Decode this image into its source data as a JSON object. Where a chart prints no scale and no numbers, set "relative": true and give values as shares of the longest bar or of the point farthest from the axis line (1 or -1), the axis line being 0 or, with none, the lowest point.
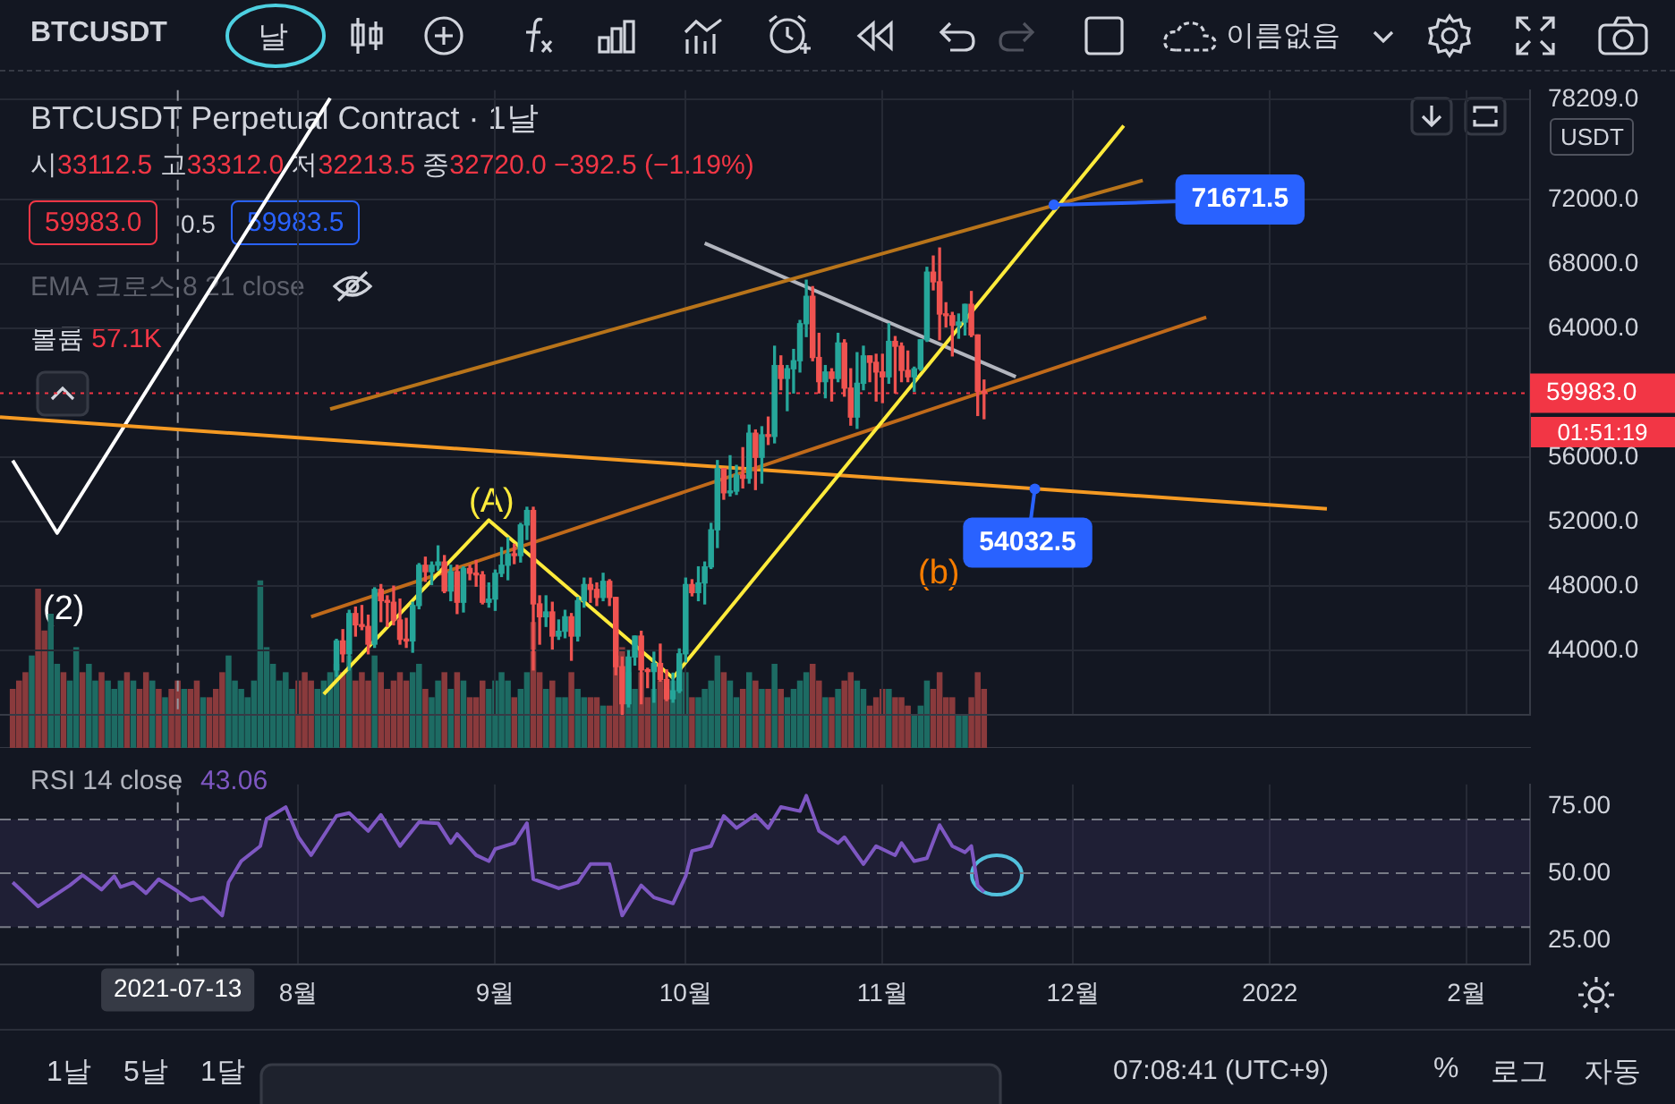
{
  "chart_data": [
    {
      "type": "candlestick",
      "title": "BTCUSDT Perpetual Contract · 1날",
      "subtitle": "시33112.5 고33312.0 저32213.5 종32720.0 −392.5 (−1.19%)",
      "x": [
        "2021-08-07",
        "2021-08-08",
        "2021-08-09",
        "2021-08-10",
        "2021-08-11",
        "2021-08-12",
        "2021-08-13",
        "2021-08-14",
        "2021-08-15",
        "2021-08-16",
        "2021-08-17",
        "2021-08-18",
        "2021-08-19",
        "2021-08-20",
        "2021-08-21",
        "2021-08-22",
        "2021-08-23",
        "2021-08-24",
        "2021-08-25",
        "2021-08-26",
        "2021-08-27",
        "2021-08-28",
        "2021-08-29",
        "2021-08-30",
        "2021-08-31",
        "2021-09-01",
        "2021-09-02",
        "2021-09-03",
        "2021-09-04",
        "2021-09-05",
        "2021-09-06",
        "2021-09-07",
        "2021-09-08",
        "2021-09-09",
        "2021-09-10",
        "2021-09-11",
        "2021-09-12",
        "2021-09-13",
        "2021-09-14",
        "2021-09-15",
        "2021-09-16",
        "2021-09-17",
        "2021-09-18",
        "2021-09-19",
        "2021-09-20",
        "2021-09-21",
        "2021-09-22",
        "2021-09-23",
        "2021-09-24",
        "2021-09-25",
        "2021-09-26",
        "2021-09-27",
        "2021-09-28",
        "2021-09-29",
        "2021-09-30",
        "2021-10-01",
        "2021-10-02",
        "2021-10-03",
        "2021-10-04",
        "2021-10-05",
        "2021-10-06",
        "2021-10-07",
        "2021-10-08",
        "2021-10-09",
        "2021-10-10",
        "2021-10-11",
        "2021-10-12",
        "2021-10-13",
        "2021-10-14",
        "2021-10-15",
        "2021-10-16",
        "2021-10-17",
        "2021-10-18",
        "2021-10-19",
        "2021-10-20",
        "2021-10-21",
        "2021-10-22",
        "2021-10-23",
        "2021-10-24",
        "2021-10-25",
        "2021-10-26",
        "2021-10-27",
        "2021-10-28",
        "2021-10-29",
        "2021-10-30",
        "2021-10-31",
        "2021-11-01",
        "2021-11-02",
        "2021-11-03",
        "2021-11-04",
        "2021-11-05",
        "2021-11-06",
        "2021-11-07",
        "2021-11-08",
        "2021-11-09",
        "2021-11-10",
        "2021-11-11",
        "2021-11-12",
        "2021-11-13",
        "2021-11-14",
        "2021-11-15",
        "2021-11-16",
        "2021-11-17"
      ],
      "ohlc": [
        [
          42800,
          44700,
          42400,
          44600
        ],
        [
          44600,
          45300,
          43300,
          43800
        ],
        [
          43800,
          46500,
          42800,
          46300
        ],
        [
          46300,
          46700,
          44900,
          45600
        ],
        [
          45600,
          46800,
          45300,
          45500
        ],
        [
          45500,
          46200,
          43800,
          44400
        ],
        [
          44400,
          47900,
          44200,
          47800
        ],
        [
          47800,
          48100,
          45800,
          47100
        ],
        [
          47100,
          47400,
          45500,
          47000
        ],
        [
          47000,
          48000,
          45600,
          45900
        ],
        [
          45900,
          47200,
          44400,
          44700
        ],
        [
          44700,
          46000,
          44200,
          44600
        ],
        [
          44600,
          47000,
          43900,
          46800
        ],
        [
          46800,
          49400,
          46600,
          49300
        ],
        [
          49300,
          49800,
          48300,
          48900
        ],
        [
          48900,
          49500,
          48100,
          49300
        ],
        [
          49300,
          50500,
          49000,
          49500
        ],
        [
          49500,
          49900,
          47600,
          47700
        ],
        [
          47700,
          49300,
          47100,
          48900
        ],
        [
          48900,
          49300,
          46300,
          47000
        ],
        [
          47000,
          49200,
          46400,
          49100
        ],
        [
          49100,
          49300,
          48400,
          48800
        ],
        [
          48800,
          49600,
          48000,
          48700
        ],
        [
          48700,
          48900,
          46900,
          47000
        ],
        [
          47000,
          48200,
          46700,
          47200
        ],
        [
          47200,
          49000,
          46500,
          48800
        ],
        [
          48800,
          50400,
          48600,
          49300
        ],
        [
          49300,
          51000,
          48400,
          50000
        ],
        [
          50000,
          50600,
          49400,
          49900
        ],
        [
          49900,
          51900,
          49500,
          51800
        ],
        [
          51800,
          52900,
          50900,
          52700
        ],
        [
          52700,
          52900,
          42800,
          46900
        ],
        [
          46900,
          47400,
          44400,
          46100
        ],
        [
          46100,
          47400,
          45500,
          46400
        ],
        [
          46400,
          47000,
          44100,
          44900
        ],
        [
          44900,
          45900,
          44700,
          45200
        ],
        [
          45200,
          46500,
          44800,
          46100
        ],
        [
          46100,
          46300,
          43400,
          44900
        ],
        [
          44900,
          47300,
          44600,
          47100
        ],
        [
          47100,
          48500,
          46700,
          48100
        ],
        [
          48100,
          48500,
          47000,
          47800
        ],
        [
          47800,
          48200,
          46800,
          47300
        ],
        [
          47300,
          48800,
          47100,
          48300
        ],
        [
          48300,
          48400,
          46800,
          47300
        ],
        [
          47300,
          47300,
          42500,
          43000
        ],
        [
          43000,
          43600,
          40000,
          40700
        ],
        [
          40700,
          44000,
          40500,
          43600
        ],
        [
          43600,
          44900,
          43100,
          44900
        ],
        [
          44900,
          45200,
          40700,
          42800
        ],
        [
          42800,
          42900,
          41700,
          42700
        ],
        [
          42700,
          43900,
          40800,
          43200
        ],
        [
          43200,
          44400,
          42100,
          42200
        ],
        [
          42200,
          42800,
          40900,
          41000
        ],
        [
          41000,
          42600,
          40800,
          41500
        ],
        [
          41500,
          44100,
          41400,
          43800
        ],
        [
          43800,
          48500,
          43300,
          48100
        ],
        [
          48100,
          48400,
          47400,
          47600
        ],
        [
          47600,
          49200,
          47100,
          48200
        ],
        [
          48200,
          49500,
          46900,
          49200
        ],
        [
          49200,
          51900,
          49100,
          51500
        ],
        [
          51500,
          55800,
          50400,
          55300
        ],
        [
          55300,
          55300,
          53400,
          53800
        ],
        [
          53800,
          56100,
          53600,
          53900
        ],
        [
          53900,
          55500,
          53700,
          54900
        ],
        [
          54900,
          56600,
          54100,
          54700
        ],
        [
          54700,
          58000,
          54400,
          57500
        ],
        [
          57500,
          57700,
          54000,
          56000
        ],
        [
          56000,
          57900,
          54400,
          57400
        ],
        [
          57400,
          58500,
          56800,
          57300
        ],
        [
          57300,
          62900,
          56900,
          61700
        ],
        [
          61700,
          62300,
          60200,
          60900
        ],
        [
          60900,
          61700,
          58900,
          61500
        ],
        [
          61500,
          62700,
          60000,
          62000
        ],
        [
          62000,
          64500,
          61300,
          64300
        ],
        [
          64300,
          67000,
          63500,
          66000
        ],
        [
          66000,
          66600,
          62000,
          62200
        ],
        [
          62200,
          63700,
          60000,
          60700
        ],
        [
          60700,
          61700,
          59700,
          61300
        ],
        [
          61300,
          61500,
          59500,
          60900
        ],
        [
          60900,
          63700,
          60700,
          63100
        ],
        [
          63100,
          63300,
          59800,
          60300
        ],
        [
          60300,
          61500,
          58000,
          58500
        ],
        [
          58500,
          62500,
          57800,
          60600
        ],
        [
          60600,
          62900,
          60200,
          62300
        ],
        [
          62300,
          62300,
          60700,
          61900
        ],
        [
          61900,
          62400,
          59500,
          61300
        ],
        [
          61300,
          62400,
          59400,
          61000
        ],
        [
          61000,
          64300,
          60600,
          63200
        ],
        [
          63200,
          63500,
          60000,
          62900
        ],
        [
          62900,
          63100,
          60700,
          61400
        ],
        [
          61400,
          62600,
          60700,
          61000
        ],
        [
          61000,
          61600,
          60100,
          61500
        ],
        [
          61500,
          63300,
          61400,
          63300
        ],
        [
          63300,
          67800,
          63200,
          67500
        ],
        [
          67500,
          68500,
          66400,
          66900
        ],
        [
          66900,
          69000,
          63300,
          64900
        ],
        [
          64900,
          65600,
          64100,
          64800
        ],
        [
          64800,
          65000,
          62300,
          64200
        ],
        [
          64200,
          64900,
          63400,
          64400
        ],
        [
          64400,
          65500,
          63600,
          65500
        ],
        [
          65500,
          66300,
          63500,
          63600
        ],
        [
          63600,
          63600,
          58600,
          60100
        ],
        [
          60100,
          60800,
          58400,
          59983
        ]
      ],
      "series": [
        {
          "type": "line",
          "x": [
            "2021-08-05",
            "2021-08-31",
            "2021-09-29",
            "2021-12-09"
          ],
          "values": [
            41300,
            52100,
            42300,
            76600
          ],
          "color": "#ffeb3b"
        },
        {
          "type": "line",
          "x": [
            "2021-08-06",
            "2021-12-12"
          ],
          "values": [
            59000,
            73200
          ],
          "color": "#b8741a"
        },
        {
          "type": "line",
          "x": [
            "2021-08-03",
            "2021-12-22"
          ],
          "values": [
            46100,
            64700
          ],
          "color": "#c06a1a"
        },
        {
          "type": "line",
          "x": [
            "2021-06-15",
            "2022-01-10"
          ],
          "values": [
            58500,
            52800
          ],
          "color": "#f59a23"
        },
        {
          "type": "line",
          "x": [
            "2021-06-17",
            "2021-06-24",
            "2021-08-06"
          ],
          "values": [
            55800,
            51300,
            78300
          ],
          "color": "#ffffff"
        },
        {
          "type": "line",
          "x": [
            "2021-10-04",
            "2021-11-22"
          ],
          "values": [
            69300,
            61000
          ],
          "color": "#b2b5be"
        }
      ],
      "xlim": [
        "2021-06-15",
        "2022-02-11"
      ],
      "xticks": [
        {
          "value": "2021-08-01",
          "label": null
        },
        {
          "value": "2021-09-01",
          "label": null
        },
        {
          "value": "2021-10-01",
          "label": null
        },
        {
          "value": "2021-11-01",
          "label": null
        },
        {
          "value": "2021-12-01",
          "label": null
        },
        {
          "value": "2022-01-01",
          "label": null
        },
        {
          "value": "2022-02-01",
          "label": null
        }
      ],
      "ylim": [
        40000,
        78800
      ],
      "yticks": [
        {
          "value": 44000,
          "label": "44000.0"
        },
        {
          "value": 48000,
          "label": "48000.0"
        },
        {
          "value": 52000,
          "label": "52000.0"
        },
        {
          "value": 56000,
          "label": "56000.0"
        },
        {
          "value": 64000,
          "label": "64000.0"
        },
        {
          "value": 68000,
          "label": "68000.0"
        },
        {
          "value": 72000,
          "label": "72000.0"
        },
        {
          "value": 78209,
          "label": "78209.0"
        }
      ],
      "tick_labels": "y",
      "grid": true,
      "ref_lines": [
        {
          "axis": "y",
          "value": 59983.0,
          "label": "59983.0",
          "color": "#f23645",
          "line_style": "dotted"
        },
        {
          "axis": "x",
          "value": "2021-07-13",
          "color": "#9598a1",
          "line_style": "dashed"
        }
      ],
      "annotations": [
        {
          "text": "71671.5",
          "x": "2021-11-28",
          "y": 71671.5
        },
        {
          "text": "54032.5",
          "x": "2021-11-25",
          "y": 54032.5
        },
        "(A)",
        "(b)",
        "(2)",
        "59983.0",
        "0.5",
        "59983.5",
        "EMA 크로스 8 21 close",
        "볼륨 57.1K",
        "01:51:19",
        "USDT",
        "BTCUSDT",
        "날",
        "이름없음",
        "1날",
        "5날",
        "1달",
        "07:08:41 (UTC+9)",
        "%",
        "로그",
        "자동"
      ]
    },
    {
      "type": "bar",
      "relative": true,
      "tick_labels": false,
      "x": [
        "2021-06-17",
        "2021-06-18",
        "2021-06-19",
        "2021-06-20",
        "2021-06-21",
        "2021-06-22",
        "2021-06-23",
        "2021-06-24",
        "2021-06-25",
        "2021-06-26",
        "2021-06-27",
        "2021-06-28",
        "2021-06-29",
        "2021-06-30",
        "2021-07-01",
        "2021-07-02",
        "2021-07-03",
        "2021-07-04",
        "2021-07-05",
        "2021-07-06",
        "2021-07-07",
        "2021-07-08",
        "2021-07-09",
        "2021-07-10",
        "2021-07-11",
        "2021-07-12",
        "2021-07-13",
        "2021-07-14",
        "2021-07-15",
        "2021-07-16",
        "2021-07-17",
        "2021-07-18",
        "2021-07-19",
        "2021-07-20",
        "2021-07-21",
        "2021-07-22",
        "2021-07-23",
        "2021-07-24",
        "2021-07-25",
        "2021-07-26",
        "2021-07-27",
        "2021-07-28",
        "2021-07-29",
        "2021-07-30",
        "2021-07-31",
        "2021-08-01",
        "2021-08-02",
        "2021-08-03",
        "2021-08-04",
        "2021-08-05",
        "2021-08-06",
        "2021-08-07",
        "2021-08-08",
        "2021-08-09",
        "2021-08-10",
        "2021-08-11",
        "2021-08-12",
        "2021-08-13",
        "2021-08-14",
        "2021-08-15",
        "2021-08-16",
        "2021-08-17",
        "2021-08-18",
        "2021-08-19",
        "2021-08-20",
        "2021-08-21",
        "2021-08-22",
        "2021-08-23",
        "2021-08-24",
        "2021-08-25",
        "2021-08-26",
        "2021-08-27",
        "2021-08-28",
        "2021-08-29",
        "2021-08-30",
        "2021-08-31",
        "2021-09-01",
        "2021-09-02",
        "2021-09-03",
        "2021-09-04",
        "2021-09-05",
        "2021-09-06",
        "2021-09-07",
        "2021-09-08",
        "2021-09-09",
        "2021-09-10",
        "2021-09-11",
        "2021-09-12",
        "2021-09-13",
        "2021-09-14",
        "2021-09-15",
        "2021-09-16",
        "2021-09-17",
        "2021-09-18",
        "2021-09-19",
        "2021-09-20",
        "2021-09-21",
        "2021-09-22",
        "2021-09-23",
        "2021-09-24",
        "2021-09-25",
        "2021-09-26",
        "2021-09-27",
        "2021-09-28",
        "2021-09-29",
        "2021-09-30",
        "2021-10-01",
        "2021-10-02",
        "2021-10-03",
        "2021-10-04",
        "2021-10-05",
        "2021-10-06",
        "2021-10-07",
        "2021-10-08",
        "2021-10-09",
        "2021-10-10",
        "2021-10-11",
        "2021-10-12",
        "2021-10-13",
        "2021-10-14",
        "2021-10-15",
        "2021-10-16",
        "2021-10-17",
        "2021-10-18",
        "2021-10-19",
        "2021-10-20",
        "2021-10-21",
        "2021-10-22",
        "2021-10-23",
        "2021-10-24",
        "2021-10-25",
        "2021-10-26",
        "2021-10-27",
        "2021-10-28",
        "2021-10-29",
        "2021-10-30",
        "2021-10-31",
        "2021-11-01",
        "2021-11-02",
        "2021-11-03",
        "2021-11-04",
        "2021-11-05",
        "2021-11-06",
        "2021-11-07",
        "2021-11-08",
        "2021-11-09",
        "2021-11-10",
        "2021-11-11",
        "2021-11-12",
        "2021-11-13",
        "2021-11-14",
        "2021-11-15",
        "2021-11-16",
        "2021-11-17"
      ],
      "values": [
        0.35,
        0.4,
        0.45,
        0.55,
        0.95,
        0.7,
        0.8,
        0.5,
        0.45,
        0.4,
        0.6,
        0.45,
        0.5,
        0.4,
        0.45,
        0.4,
        0.35,
        0.4,
        0.45,
        0.4,
        0.35,
        0.45,
        0.4,
        0.35,
        0.3,
        0.35,
        0.4,
        0.35,
        0.35,
        0.4,
        0.3,
        0.3,
        0.35,
        0.45,
        0.55,
        0.4,
        0.35,
        0.3,
        0.4,
        1,
        0.6,
        0.5,
        0.4,
        0.45,
        0.35,
        0.4,
        0.45,
        0.4,
        0.35,
        0.4,
        0.45,
        0.5,
        0.45,
        0.55,
        0.4,
        0.45,
        0.4,
        0.55,
        0.45,
        0.35,
        0.4,
        0.45,
        0.4,
        0.45,
        0.5,
        0.35,
        0.3,
        0.4,
        0.45,
        0.35,
        0.45,
        0.4,
        0.3,
        0.3,
        0.4,
        0.35,
        0.4,
        0.45,
        0.4,
        0.3,
        0.35,
        0.45,
        0.75,
        0.45,
        0.35,
        0.4,
        0.3,
        0.3,
        0.45,
        0.35,
        0.3,
        0.3,
        0.3,
        0.25,
        0.25,
        0.55,
        0.6,
        0.45,
        0.35,
        0.45,
        0.3,
        0.35,
        0.4,
        0.35,
        0.4,
        0.35,
        0.45,
        0.3,
        0.3,
        0.35,
        0.4,
        0.55,
        0.45,
        0.4,
        0.3,
        0.35,
        0.45,
        0.4,
        0.35,
        0.35,
        0.5,
        0.35,
        0.3,
        0.35,
        0.4,
        0.45,
        0.5,
        0.4,
        0.3,
        0.3,
        0.35,
        0.4,
        0.45,
        0.4,
        0.35,
        0.25,
        0.3,
        0.35,
        0.35,
        0.3,
        0.3,
        0.25,
        0.2,
        0.25,
        0.4,
        0.35,
        0.45,
        0.3,
        0.3,
        0.2,
        0.2,
        0.3,
        0.45,
        0.35
      ],
      "colors": [
        "#8a3a3c",
        "#8a3a3c",
        "#8a3a3c",
        "#1d6b63",
        "#8a3a3c",
        "#8a3a3c",
        "#1d6b63",
        "#1d6b63",
        "#8a3a3c",
        "#1d6b63",
        "#1d6b63",
        "#8a3a3c",
        "#1d6b63",
        "#1d6b63",
        "#8a3a3c",
        "#1d6b63",
        "#1d6b63",
        "#1d6b63",
        "#8a3a3c",
        "#1d6b63",
        "#8a3a3c",
        "#8a3a3c",
        "#1d6b63",
        "#8a3a3c",
        "#1d6b63",
        "#8a3a3c",
        "#8a3a3c",
        "#1d6b63",
        "#8a3a3c",
        "#8a3a3c",
        "#1d6b63",
        "#8a3a3c",
        "#8a3a3c",
        "#8a3a3c",
        "#1d6b63",
        "#1d6b63",
        "#1d6b63",
        "#1d6b63",
        "#1d6b63",
        "#1d6b63",
        "#1d6b63",
        "#1d6b63",
        "#1d6b63",
        "#1d6b63",
        "#1d6b63",
        "#8a3a3c",
        "#8a3a3c",
        "#8a3a3c",
        "#1d6b63",
        "#1d6b63",
        "#1d6b63",
        "#1d6b63",
        "#8a3a3c",
        "#1d6b63",
        "#8a3a3c",
        "#8a3a3c",
        "#8a3a3c",
        "#1d6b63",
        "#8a3a3c",
        "#8a3a3c",
        "#8a3a3c",
        "#8a3a3c",
        "#8a3a3c",
        "#1d6b63",
        "#1d6b63",
        "#8a3a3c",
        "#1d6b63",
        "#1d6b63",
        "#8a3a3c",
        "#1d6b63",
        "#8a3a3c",
        "#1d6b63",
        "#8a3a3c",
        "#8a3a3c",
        "#8a3a3c",
        "#1d6b63",
        "#1d6b63",
        "#1d6b63",
        "#1d6b63",
        "#8a3a3c",
        "#1d6b63",
        "#1d6b63",
        "#8a3a3c",
        "#8a3a3c",
        "#1d6b63",
        "#8a3a3c",
        "#1d6b63",
        "#1d6b63",
        "#8a3a3c",
        "#1d6b63",
        "#1d6b63",
        "#8a3a3c",
        "#8a3a3c",
        "#1d6b63",
        "#8a3a3c",
        "#8a3a3c",
        "#8a3a3c",
        "#1d6b63",
        "#1d6b63",
        "#8a3a3c",
        "#8a3a3c",
        "#1d6b63",
        "#8a3a3c",
        "#8a3a3c",
        "#1d6b63",
        "#1d6b63",
        "#1d6b63",
        "#8a3a3c",
        "#1d6b63",
        "#1d6b63",
        "#1d6b63",
        "#1d6b63",
        "#8a3a3c",
        "#1d6b63",
        "#1d6b63",
        "#8a3a3c",
        "#1d6b63",
        "#8a3a3c",
        "#1d6b63",
        "#8a3a3c",
        "#1d6b63",
        "#8a3a3c",
        "#1d6b63",
        "#1d6b63",
        "#1d6b63",
        "#1d6b63",
        "#8a3a3c",
        "#8a3a3c",
        "#1d6b63",
        "#8a3a3c",
        "#1d6b63",
        "#8a3a3c",
        "#8a3a3c",
        "#1d6b63",
        "#1d6b63",
        "#8a3a3c",
        "#8a3a3c",
        "#8a3a3c",
        "#1d6b63",
        "#8a3a3c",
        "#8a3a3c",
        "#8a3a3c",
        "#1d6b63",
        "#1d6b63",
        "#1d6b63",
        "#8a3a3c",
        "#8a3a3c",
        "#8a3a3c",
        "#8a3a3c",
        "#1d6b63",
        "#1d6b63",
        "#8a3a3c",
        "#8a3a3c",
        "#8a3a3c"
      ],
      "xlim": [
        "2021-06-15",
        "2022-02-11"
      ]
    },
    {
      "type": "line",
      "title": "RSI 14 close",
      "series": [
        {
          "color": "#7e57c2",
          "x": [
            "2021-06-17",
            "2021-06-19",
            "2021-06-21",
            "2021-06-26",
            "2021-06-28",
            "2021-07-01",
            "2021-07-03",
            "2021-07-04",
            "2021-07-06",
            "2021-07-08",
            "2021-07-10",
            "2021-07-13",
            "2021-07-15",
            "2021-07-17",
            "2021-07-20",
            "2021-07-21",
            "2021-07-23",
            "2021-07-26",
            "2021-07-27",
            "2021-07-30",
            "2021-08-01",
            "2021-08-03",
            "2021-08-07",
            "2021-08-09",
            "2021-08-12",
            "2021-08-14",
            "2021-08-17",
            "2021-08-20",
            "2021-08-23",
            "2021-08-25",
            "2021-08-26",
            "2021-08-29",
            "2021-08-31",
            "2021-09-01",
            "2021-09-04",
            "2021-09-06",
            "2021-09-07",
            "2021-09-11",
            "2021-09-14",
            "2021-09-16",
            "2021-09-19",
            "2021-09-21",
            "2021-09-24",
            "2021-09-26",
            "2021-09-29",
            "2021-10-01",
            "2021-10-02",
            "2021-10-05",
            "2021-10-07",
            "2021-10-09",
            "2021-10-12",
            "2021-10-14",
            "2021-10-16",
            "2021-10-19",
            "2021-10-20",
            "2021-10-22",
            "2021-10-25",
            "2021-10-26",
            "2021-10-29",
            "2021-10-31",
            "2021-11-03",
            "2021-11-04",
            "2021-11-06",
            "2021-11-08",
            "2021-11-10",
            "2021-11-12",
            "2021-11-14",
            "2021-11-15",
            "2021-11-16",
            "2021-11-17"
          ],
          "values": [
            46.6,
            42.2,
            37.7,
            45.5,
            49.3,
            43.9,
            48.9,
            44.9,
            46.6,
            42.6,
            47.8,
            43.3,
            39.9,
            41.0,
            34.3,
            46.6,
            54.5,
            60.1,
            70.2,
            74.6,
            63.4,
            56.7,
            71.3,
            72.4,
            65.7,
            71.7,
            60.1,
            69.0,
            68.6,
            61.2,
            64.6,
            56.7,
            54.5,
            59.0,
            61.2,
            68.6,
            47.8,
            44.4,
            46.6,
            53.4,
            53.4,
            34.3,
            45.5,
            41.0,
            38.8,
            48.9,
            58.3,
            60.1,
            71.3,
            66.8,
            71.7,
            66.8,
            74.6,
            73.1,
            78.8,
            65.7,
            61.2,
            63.4,
            53.4,
            60.1,
            56.7,
            61.2,
            54.5,
            55.6,
            67.9,
            60.1,
            57.8,
            60.1,
            45.5,
            43.06
          ]
        }
      ],
      "xlim": [
        "2021-06-15",
        "2022-02-11"
      ],
      "xticks": [
        {
          "value": "2021-08-01",
          "label": "8월"
        },
        {
          "value": "2021-09-01",
          "label": "9월"
        },
        {
          "value": "2021-10-01",
          "label": "10월"
        },
        {
          "value": "2021-11-01",
          "label": "11월"
        },
        {
          "value": "2021-12-01",
          "label": "12월"
        },
        {
          "value": "2022-01-01",
          "label": "2022"
        },
        {
          "value": "2022-02-01",
          "label": "2월"
        }
      ],
      "ylim": [
        16,
        83
      ],
      "yticks": [
        {
          "value": 25,
          "label": "25.00"
        },
        {
          "value": 50,
          "label": "50.00"
        },
        {
          "value": 75,
          "label": "75.00"
        }
      ],
      "grid": "x",
      "bands": [
        {
          "axis": "y",
          "from": 30,
          "to": 70,
          "color": "#7e57c2"
        }
      ],
      "ref_lines": [
        {
          "axis": "y",
          "value": 70,
          "color": "#787b86",
          "line_style": "dashed"
        },
        {
          "axis": "y",
          "value": 50,
          "color": "#787b86",
          "line_style": "dashed"
        },
        {
          "axis": "y",
          "value": 30,
          "color": "#787b86",
          "line_style": "dashed"
        },
        {
          "axis": "x",
          "value": "2021-07-13",
          "label": "2021-07-13",
          "color": "#9598a1",
          "line_style": "dashed"
        }
      ],
      "annotations": [
        "43.06"
      ]
    }
  ]
}
